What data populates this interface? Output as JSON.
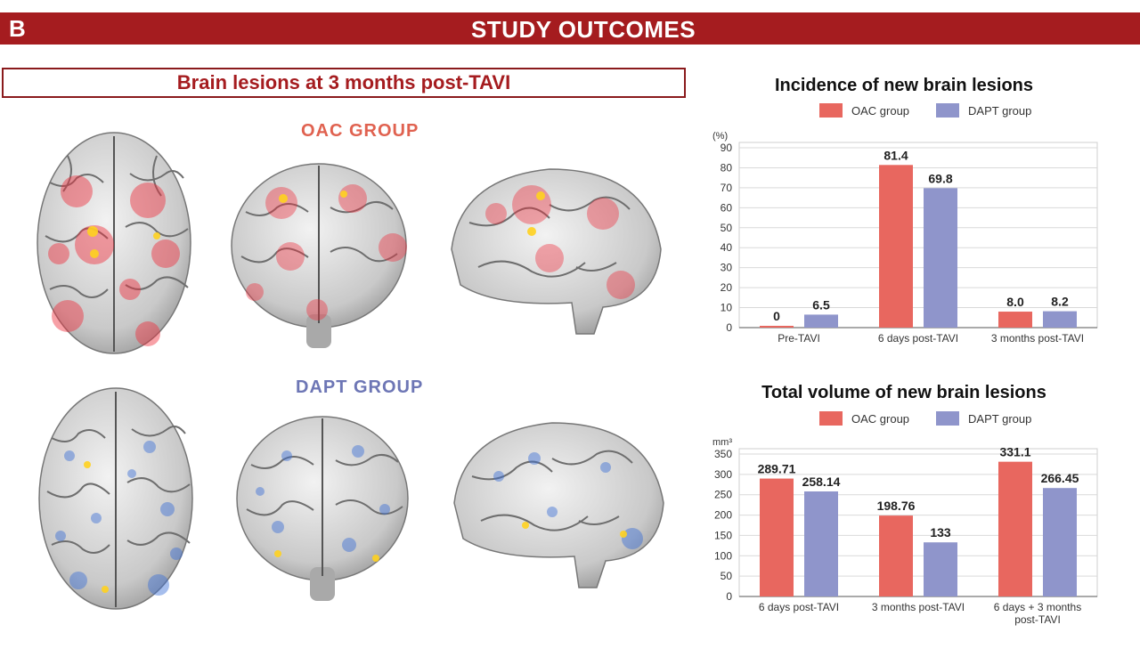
{
  "header": {
    "letter": "B",
    "title": "STUDY OUTCOMES"
  },
  "figure": {
    "subtitle": "Brain lesions at 3 months post-TAVI",
    "oac_label": "OAC GROUP",
    "dapt_label": "DAPT GROUP"
  },
  "colors": {
    "oac": "#e8675f",
    "dapt": "#8f95cb",
    "banner": "#a51c1f",
    "oac_text": "#e06250",
    "dapt_text": "#6d76b5"
  },
  "chart_data": [
    {
      "type": "bar",
      "title": "Incidence of new brain lesions",
      "ylabel": "(%)",
      "ylim": [
        0,
        90
      ],
      "yticks": [
        0,
        10,
        20,
        30,
        40,
        50,
        60,
        70,
        80,
        90
      ],
      "categories": [
        "Pre-TAVI",
        "6 days post-TAVI",
        "3 months post-TAVI"
      ],
      "series": [
        {
          "name": "OAC group",
          "values": [
            0,
            81.4,
            8.0
          ],
          "labels": [
            "0",
            "81.4",
            "8.0"
          ]
        },
        {
          "name": "DAPT group",
          "values": [
            6.5,
            69.8,
            8.2
          ],
          "labels": [
            "6.5",
            "69.8",
            "8.2"
          ]
        }
      ],
      "grid": true,
      "legend": "top"
    },
    {
      "type": "bar",
      "title": "Total volume of new brain lesions",
      "ylabel": "mm³",
      "ylim": [
        0,
        350
      ],
      "yticks": [
        0,
        50,
        100,
        150,
        200,
        250,
        300,
        350
      ],
      "categories": [
        "6 days post-TAVI",
        "3 months post-TAVI",
        "6 days + 3 months post-TAVI"
      ],
      "series": [
        {
          "name": "OAC group",
          "values": [
            289.71,
            198.76,
            331.1
          ],
          "labels": [
            "289.71",
            "198.76",
            "331.1"
          ]
        },
        {
          "name": "DAPT group",
          "values": [
            258.14,
            133,
            266.45
          ],
          "labels": [
            "258.14",
            "133",
            "266.45"
          ]
        }
      ],
      "grid": true,
      "legend": "top"
    }
  ]
}
